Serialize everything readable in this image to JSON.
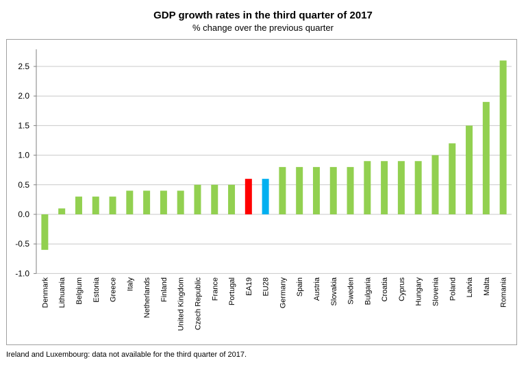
{
  "chart_data": {
    "type": "bar",
    "title": "GDP growth rates in the third quarter of 2017",
    "subtitle": "% change over the previous quarter",
    "footnote": "Ireland and Luxembourg: data not available for the third quarter of 2017.",
    "categories": [
      "Denmark",
      "Lithuania",
      "Belgium",
      "Estonia",
      "Greece",
      "Italy",
      "Netherlands",
      "Finland",
      "United Kingdom",
      "Czech Republic",
      "France",
      "Portugal",
      "EA19",
      "EU28",
      "Germany",
      "Spain",
      "Austria",
      "Slovakia",
      "Sweden",
      "Bulgaria",
      "Croatia",
      "Cyprus",
      "Hungary",
      "Slovenia",
      "Poland",
      "Latvia",
      "Malta",
      "Romania"
    ],
    "values": [
      -0.6,
      0.1,
      0.3,
      0.3,
      0.3,
      0.4,
      0.4,
      0.4,
      0.4,
      0.5,
      0.5,
      0.5,
      0.6,
      0.6,
      0.8,
      0.8,
      0.8,
      0.8,
      0.8,
      0.9,
      0.9,
      0.9,
      0.9,
      1.0,
      1.2,
      1.5,
      1.9,
      2.6
    ],
    "colors": {
      "default": "#92d050",
      "EA19": "#ff0000",
      "EU28": "#00b0f0"
    },
    "ylim": [
      -1.0,
      2.9
    ],
    "yticks": [
      "-1.0",
      "-0.5",
      "0.0",
      "0.5",
      "1.0",
      "1.5",
      "2.0",
      "2.5"
    ],
    "grid": true,
    "legend": "none"
  }
}
